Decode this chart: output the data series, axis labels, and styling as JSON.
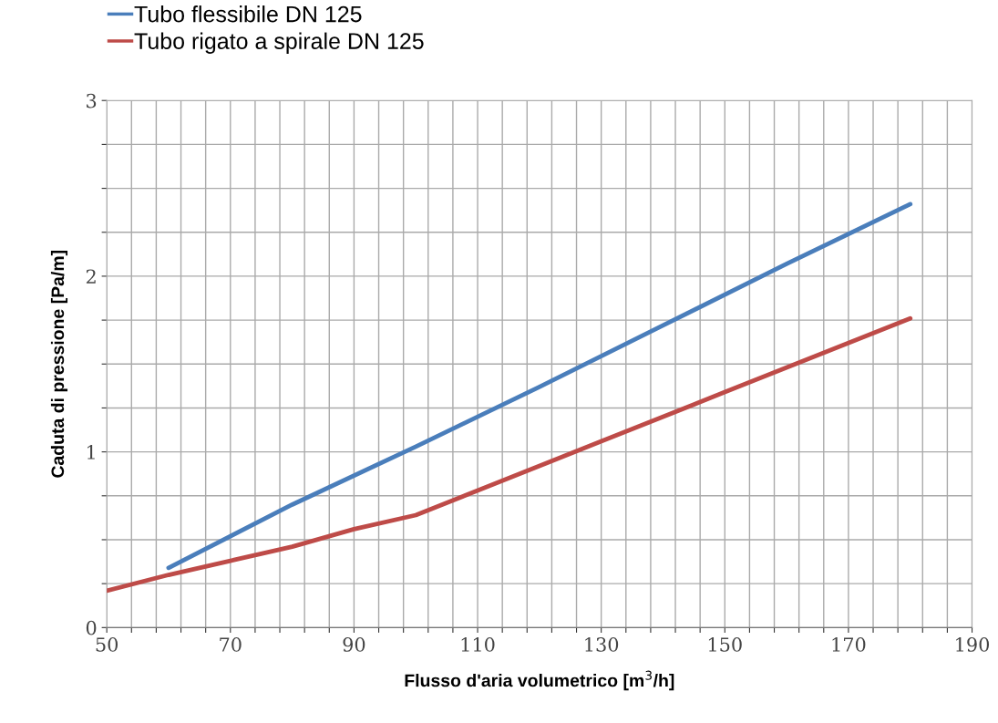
{
  "chart_data": {
    "type": "line",
    "xlabel": "Flusso d'aria volumetrico [m$^{3}$/h]",
    "ylabel": "Caduta di pressione [Pa/m]",
    "xlim": [
      50,
      190
    ],
    "ylim": [
      0,
      3
    ],
    "xticks": [
      50,
      {
        "value": 54,
        "label": null
      },
      {
        "value": 58,
        "label": null
      },
      {
        "value": 62,
        "label": null
      },
      {
        "value": 66,
        "label": null
      },
      70,
      {
        "value": 74,
        "label": null
      },
      {
        "value": 78,
        "label": null
      },
      {
        "value": 82,
        "label": null
      },
      {
        "value": 86,
        "label": null
      },
      90,
      {
        "value": 94,
        "label": null
      },
      {
        "value": 98,
        "label": null
      },
      {
        "value": 102,
        "label": null
      },
      {
        "value": 106,
        "label": null
      },
      110,
      {
        "value": 114,
        "label": null
      },
      {
        "value": 118,
        "label": null
      },
      {
        "value": 122,
        "label": null
      },
      {
        "value": 126,
        "label": null
      },
      130,
      {
        "value": 134,
        "label": null
      },
      {
        "value": 138,
        "label": null
      },
      {
        "value": 142,
        "label": null
      },
      {
        "value": 146,
        "label": null
      },
      150,
      {
        "value": 154,
        "label": null
      },
      {
        "value": 158,
        "label": null
      },
      {
        "value": 162,
        "label": null
      },
      {
        "value": 166,
        "label": null
      },
      170,
      {
        "value": 174,
        "label": null
      },
      {
        "value": 178,
        "label": null
      },
      {
        "value": 182,
        "label": null
      },
      {
        "value": 186,
        "label": null
      },
      190
    ],
    "yticks": [
      0,
      {
        "value": 0.25,
        "label": null
      },
      {
        "value": 0.5,
        "label": null
      },
      {
        "value": 0.75,
        "label": null
      },
      1,
      {
        "value": 1.25,
        "label": null
      },
      {
        "value": 1.5,
        "label": null
      },
      {
        "value": 1.75,
        "label": null
      },
      2,
      {
        "value": 2.25,
        "label": null
      },
      {
        "value": 2.5,
        "label": null
      },
      {
        "value": 2.75,
        "label": null
      },
      3
    ],
    "grid": true,
    "legend": "top left",
    "marker": "none",
    "line_style": "solid",
    "series": [
      {
        "name": "Tubo flessibile DN 125",
        "color": "#4a7ebb",
        "x": [
          60,
          80,
          100,
          120,
          140,
          160,
          180
        ],
        "values": [
          0.34,
          0.7,
          1.03,
          1.37,
          1.72,
          2.07,
          2.41
        ]
      },
      {
        "name": "Tubo rigato a spirale DN 125",
        "color": "#be4b48",
        "x": [
          50,
          60,
          70,
          80,
          90,
          100,
          110,
          130,
          150,
          180
        ],
        "values": [
          0.21,
          0.3,
          0.38,
          0.46,
          0.56,
          0.64,
          0.78,
          1.06,
          1.34,
          1.76
        ]
      }
    ]
  }
}
